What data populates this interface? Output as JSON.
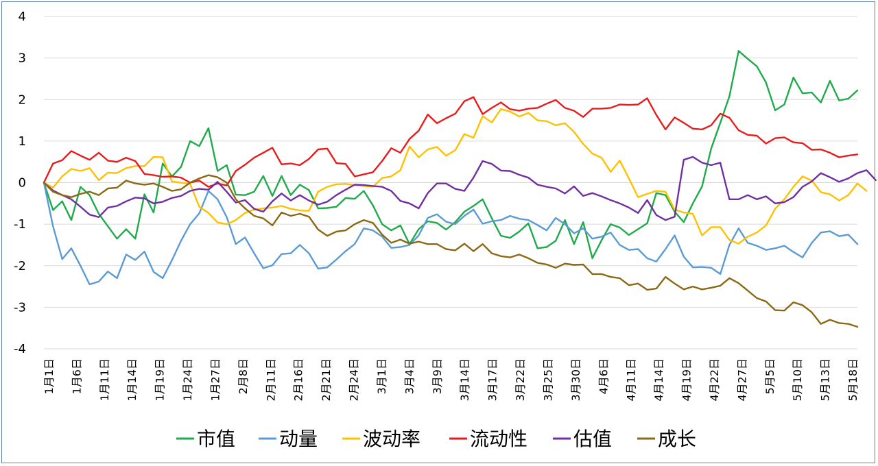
{
  "chart_data": {
    "type": "line",
    "title": "",
    "xlabel": "",
    "ylabel": "",
    "ylim": [
      -4,
      4
    ],
    "yticks": [
      4,
      3,
      2,
      1,
      0,
      -1,
      -2,
      -3,
      -4
    ],
    "grid": "horizontal",
    "legend_position": "bottom",
    "x_tick_labels": [
      "1月1日",
      "1月6日",
      "1月11日",
      "1月14日",
      "1月19日",
      "1月24日",
      "1月27日",
      "2月8日",
      "2月11日",
      "2月16日",
      "2月21日",
      "2月24日",
      "3月1日",
      "3月4日",
      "3月9日",
      "3月14日",
      "3月17日",
      "3月22日",
      "3月25日",
      "3月30日",
      "4月6日",
      "4月11日",
      "4月14日",
      "4月19日",
      "4月22日",
      "4月27日",
      "5月5日",
      "5月10日",
      "5月13日",
      "5月18日"
    ],
    "series": [
      {
        "name": "市值",
        "color": "#1faa4b",
        "values": [
          0,
          -0.66,
          -0.45,
          -0.9,
          -0.1,
          -0.3,
          -0.75,
          -1.05,
          -1.35,
          -1.12,
          -1.35,
          -0.28,
          -0.72,
          0.46,
          0.15,
          0.38,
          1.0,
          0.88,
          1.31,
          0.28,
          0.42,
          -0.29,
          -0.3,
          -0.22,
          0.16,
          -0.32,
          0.16,
          -0.3,
          -0.05,
          -0.18,
          -0.62,
          -0.61,
          -0.58,
          -0.37,
          -0.39,
          -0.2,
          -0.55,
          -1.0,
          -1.15,
          -1.03,
          -1.48,
          -1.12,
          -0.93,
          -0.97,
          -1.13,
          -0.95,
          -0.7,
          -0.56,
          -0.4,
          -0.86,
          -1.28,
          -1.33,
          -1.18,
          -0.98,
          -1.58,
          -1.55,
          -1.4,
          -0.9,
          -1.48,
          -0.95,
          -1.82,
          -1.39,
          -1.0,
          -1.08,
          -1.26,
          -1.12,
          -0.98,
          -0.25,
          -0.3,
          -0.7,
          -0.95,
          -0.5,
          -0.09,
          0.82,
          1.44,
          2.08,
          3.17,
          2.98,
          2.8,
          2.41,
          1.74,
          1.88,
          2.53,
          2.15,
          2.17,
          1.93,
          2.45,
          1.98,
          2.02,
          2.22
        ]
      },
      {
        "name": "动量",
        "color": "#5b9bd5",
        "values": [
          0,
          -1.05,
          -1.84,
          -1.58,
          -2.0,
          -2.45,
          -2.38,
          -2.14,
          -2.3,
          -1.73,
          -1.86,
          -1.66,
          -2.15,
          -2.3,
          -1.87,
          -1.4,
          -1.0,
          -0.74,
          -0.2,
          -0.4,
          -0.83,
          -1.48,
          -1.32,
          -1.7,
          -2.06,
          -1.99,
          -1.72,
          -1.7,
          -1.5,
          -1.7,
          -2.07,
          -2.04,
          -1.85,
          -1.65,
          -1.48,
          -1.1,
          -1.15,
          -1.3,
          -1.57,
          -1.55,
          -1.5,
          -1.27,
          -0.85,
          -0.76,
          -0.94,
          -1.0,
          -0.8,
          -0.65,
          -0.99,
          -0.93,
          -0.9,
          -0.8,
          -0.87,
          -0.9,
          -1.02,
          -1.15,
          -0.85,
          -1.0,
          -1.22,
          -1.1,
          -1.35,
          -1.3,
          -1.2,
          -1.5,
          -1.62,
          -1.6,
          -1.82,
          -1.9,
          -1.6,
          -1.27,
          -1.78,
          -2.04,
          -2.03,
          -2.05,
          -2.2,
          -1.5,
          -1.1,
          -1.45,
          -1.52,
          -1.62,
          -1.58,
          -1.52,
          -1.67,
          -1.8,
          -1.45,
          -1.2,
          -1.17,
          -1.29,
          -1.25,
          -1.48
        ]
      },
      {
        "name": "波动率",
        "color": "#ffc000",
        "values": [
          0,
          -0.12,
          0.15,
          0.33,
          0.28,
          0.35,
          0.06,
          0.24,
          0.23,
          0.35,
          0.4,
          0.4,
          0.62,
          0.61,
          0.03,
          0.0,
          -0.03,
          -0.58,
          -0.73,
          -0.96,
          -1.0,
          -0.9,
          -0.73,
          -0.65,
          -0.62,
          -0.6,
          -0.56,
          -0.63,
          -0.67,
          -0.68,
          -0.22,
          -0.1,
          -0.04,
          -0.03,
          -0.06,
          -0.08,
          -0.1,
          0.11,
          0.15,
          0.3,
          0.87,
          0.61,
          0.8,
          0.86,
          0.65,
          0.78,
          1.17,
          1.08,
          1.6,
          1.45,
          1.77,
          1.71,
          1.59,
          1.68,
          1.5,
          1.48,
          1.38,
          1.43,
          1.22,
          0.93,
          0.7,
          0.6,
          0.26,
          0.53,
          0.1,
          -0.35,
          -0.27,
          -0.2,
          -0.22,
          -0.65,
          -0.72,
          -0.75,
          -1.27,
          -1.07,
          -1.07,
          -1.38,
          -1.47,
          -1.3,
          -1.2,
          -1.03,
          -0.63,
          -0.4,
          -0.1,
          0.15,
          0.05,
          -0.23,
          -0.28,
          -0.43,
          -0.3,
          -0.02,
          -0.2
        ]
      },
      {
        "name": "流动性",
        "color": "#e81c1c",
        "values": [
          0,
          0.46,
          0.54,
          0.76,
          0.65,
          0.55,
          0.72,
          0.53,
          0.5,
          0.6,
          0.52,
          0.21,
          0.18,
          0.14,
          0.15,
          0.12,
          0.0,
          0.05,
          -0.1,
          -0.02,
          -0.07,
          0.28,
          0.43,
          0.6,
          0.72,
          0.84,
          0.44,
          0.46,
          0.42,
          0.57,
          0.8,
          0.82,
          0.47,
          0.45,
          0.15,
          0.2,
          0.25,
          0.52,
          0.83,
          0.72,
          1.05,
          1.25,
          1.64,
          1.43,
          1.55,
          1.66,
          1.96,
          2.06,
          1.65,
          1.8,
          1.93,
          1.77,
          1.73,
          1.78,
          1.8,
          1.9,
          1.99,
          1.8,
          1.73,
          1.58,
          1.78,
          1.78,
          1.8,
          1.88,
          1.87,
          1.88,
          2.03,
          1.63,
          1.28,
          1.57,
          1.44,
          1.3,
          1.28,
          1.38,
          1.66,
          1.56,
          1.26,
          1.15,
          1.13,
          0.94,
          1.07,
          1.09,
          0.97,
          0.95,
          0.79,
          0.8,
          0.72,
          0.61,
          0.65,
          0.68
        ]
      },
      {
        "name": "估值",
        "color": "#7030a0",
        "values": [
          0,
          -0.19,
          -0.3,
          -0.4,
          -0.58,
          -0.77,
          -0.83,
          -0.6,
          -0.56,
          -0.45,
          -0.36,
          -0.38,
          -0.5,
          -0.46,
          -0.37,
          -0.32,
          -0.2,
          -0.15,
          -0.17,
          0.02,
          -0.22,
          -0.48,
          -0.42,
          -0.63,
          -0.7,
          -0.45,
          -0.26,
          -0.43,
          -0.3,
          -0.43,
          -0.53,
          -0.46,
          -0.3,
          -0.17,
          -0.05,
          -0.06,
          -0.08,
          -0.1,
          -0.2,
          -0.44,
          -0.5,
          -0.62,
          -0.25,
          -0.02,
          -0.02,
          -0.15,
          -0.2,
          0.12,
          0.52,
          0.45,
          0.29,
          0.28,
          0.19,
          0.12,
          -0.05,
          -0.1,
          -0.14,
          -0.26,
          -0.09,
          -0.32,
          -0.25,
          -0.33,
          -0.42,
          -0.5,
          -0.6,
          -0.73,
          -0.42,
          -0.78,
          -0.9,
          -0.82,
          0.55,
          0.62,
          0.48,
          0.42,
          0.48,
          -0.4,
          -0.4,
          -0.3,
          -0.4,
          -0.33,
          -0.5,
          -0.47,
          -0.35,
          -0.1,
          0.03,
          0.23,
          0.13,
          0.02,
          0.1,
          0.23,
          0.3,
          0.06
        ]
      },
      {
        "name": "成长",
        "color": "#8b6914",
        "values": [
          0,
          -0.22,
          -0.3,
          -0.35,
          -0.27,
          -0.22,
          -0.3,
          -0.14,
          -0.12,
          0.05,
          -0.02,
          -0.05,
          -0.02,
          -0.1,
          -0.2,
          -0.16,
          0.0,
          0.1,
          0.18,
          0.13,
          0.0,
          -0.4,
          -0.62,
          -0.8,
          -0.86,
          -1.03,
          -0.72,
          -0.8,
          -0.75,
          -0.82,
          -1.13,
          -1.28,
          -1.18,
          -1.15,
          -1.0,
          -0.9,
          -0.97,
          -1.25,
          -1.45,
          -1.37,
          -1.47,
          -1.42,
          -1.48,
          -1.48,
          -1.6,
          -1.63,
          -1.47,
          -1.65,
          -1.48,
          -1.7,
          -1.77,
          -1.8,
          -1.73,
          -1.82,
          -1.93,
          -1.97,
          -2.05,
          -1.95,
          -1.98,
          -1.97,
          -2.2,
          -2.2,
          -2.27,
          -2.3,
          -2.47,
          -2.43,
          -2.58,
          -2.55,
          -2.27,
          -2.43,
          -2.57,
          -2.5,
          -2.57,
          -2.53,
          -2.48,
          -2.3,
          -2.42,
          -2.6,
          -2.78,
          -2.86,
          -3.07,
          -3.08,
          -2.88,
          -2.95,
          -3.12,
          -3.4,
          -3.3,
          -3.38,
          -3.4,
          -3.47
        ]
      }
    ]
  }
}
